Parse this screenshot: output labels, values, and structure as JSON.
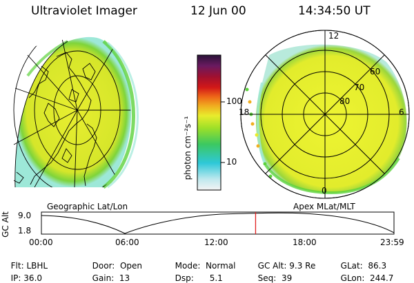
{
  "header": {
    "instrument": "Ultraviolet Imager",
    "date": "12 Jun 00",
    "time": "14:34:50 UT"
  },
  "panels": {
    "left_label": "Geographic Lat/Lon",
    "right_label": "Apex MLat/MLT"
  },
  "colorbar": {
    "unit_label": "photon cm⁻²s⁻¹",
    "tick_100": "100",
    "tick_10": "10"
  },
  "polar": {
    "mlt_12": "12",
    "mlt_18": "18",
    "mlt_6": "6",
    "mlt_0": "0",
    "lat_60": "60",
    "lat_70": "70",
    "lat_80": "80"
  },
  "altitude_plot": {
    "axis_label": "GC Alt",
    "y_max": "9.0",
    "y_min": "1.8",
    "times": [
      "00:00",
      "06:00",
      "12:00",
      "18:00",
      "23:59"
    ],
    "current_time_fraction": 0.6075
  },
  "info": {
    "flt_label": "Flt:",
    "flt_value": "LBHL",
    "ip_label": "IP:",
    "ip_value": "36.0",
    "door_label": "Door:",
    "door_value": "Open",
    "gain_label": "Gain:",
    "gain_value": "13",
    "mode_label": "Mode:",
    "mode_value": "Normal",
    "dsp_label": "Dsp:",
    "dsp_value": "5.1",
    "gcalt_label": "GC Alt:",
    "gcalt_value": "9.3 Re",
    "seq_label": "Seq:",
    "seq_value": "39",
    "glat_label": "GLat:",
    "glat_value": "86.3",
    "glon_label": "GLon:",
    "glon_value": "244.7"
  },
  "colors": {
    "aurora_yellow": "#e4ec2c",
    "aurora_green": "#5cd23c",
    "marker_red": "#e02020"
  }
}
